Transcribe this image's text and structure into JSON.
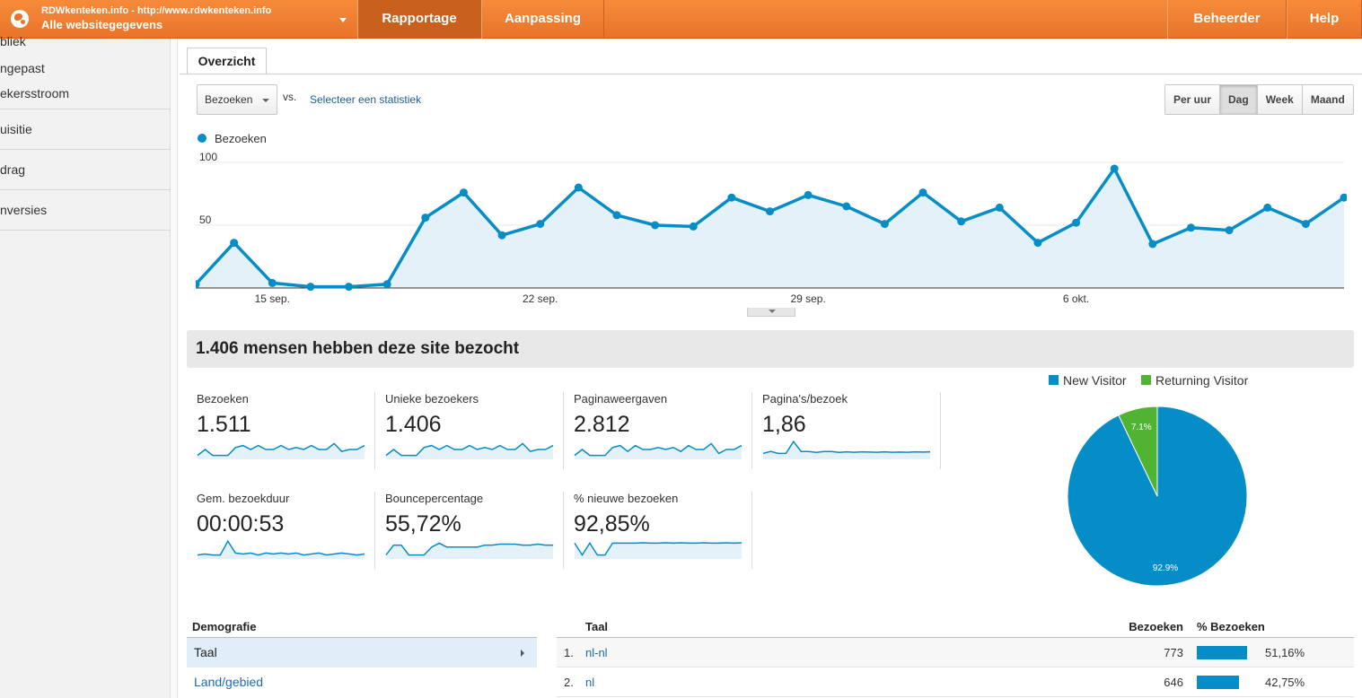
{
  "header": {
    "site_url": "RDWkenteken.info - http://www.rdwkenteken.info",
    "site_name": "Alle websitegegevens",
    "tabs": [
      "Rapportage",
      "Aanpassing"
    ],
    "right_tabs": [
      "Beheerder",
      "Help"
    ]
  },
  "sidebar": {
    "items": [
      "bliek",
      "ngepast",
      "ekersstroom",
      "uisitie",
      "drag",
      "nversies"
    ]
  },
  "main": {
    "tab": "Overzicht",
    "metric_select": "Bezoeken",
    "vs": "vs.",
    "select_stat": "Selecteer een statistiek",
    "periods": [
      "Per uur",
      "Dag",
      "Week",
      "Maand"
    ],
    "active_period": "Dag",
    "summary": "1.406 mensen hebben deze site bezocht"
  },
  "chart_data": [
    {
      "type": "area",
      "series": [
        {
          "name": "Bezoeken",
          "values": [
            3,
            36,
            4,
            1,
            1,
            3,
            56,
            76,
            42,
            51,
            80,
            58,
            50,
            49,
            72,
            61,
            74,
            65,
            51,
            76,
            53,
            64,
            36,
            52,
            95,
            35,
            48,
            46,
            64,
            51,
            72
          ]
        }
      ],
      "x_tick_labels": [
        "15 sep.",
        "22 sep.",
        "29 sep.",
        "6 okt."
      ],
      "y_tick_labels": [
        "100",
        "50"
      ],
      "ylim": [
        0,
        100
      ],
      "color": "#058dc7"
    },
    {
      "type": "pie",
      "categories": [
        "New Visitor",
        "Returning Visitor"
      ],
      "values": [
        92.9,
        7.1
      ],
      "labels": [
        "92.9%",
        "7.1%"
      ],
      "colors": [
        "#058dc7",
        "#50b432"
      ],
      "legend": "top"
    }
  ],
  "kpis": [
    {
      "label": "Bezoeken",
      "value": "1.511",
      "spark": [
        0.2,
        0.5,
        0.2,
        0.2,
        0.2,
        0.6,
        0.7,
        0.5,
        0.7,
        0.5,
        0.5,
        0.7,
        0.5,
        0.6,
        0.5,
        0.7,
        0.5,
        0.5,
        0.8,
        0.4,
        0.5,
        0.5,
        0.7
      ]
    },
    {
      "label": "Unieke bezoekers",
      "value": "1.406",
      "spark": [
        0.2,
        0.5,
        0.2,
        0.2,
        0.2,
        0.6,
        0.7,
        0.5,
        0.7,
        0.5,
        0.5,
        0.7,
        0.5,
        0.6,
        0.5,
        0.7,
        0.5,
        0.5,
        0.8,
        0.4,
        0.5,
        0.5,
        0.7
      ]
    },
    {
      "label": "Paginaweergaven",
      "value": "2.812",
      "spark": [
        0.2,
        0.5,
        0.2,
        0.2,
        0.2,
        0.6,
        0.7,
        0.4,
        0.7,
        0.5,
        0.5,
        0.6,
        0.5,
        0.6,
        0.4,
        0.7,
        0.5,
        0.5,
        0.8,
        0.3,
        0.5,
        0.5,
        0.7
      ]
    },
    {
      "label": "Pagina's/bezoek",
      "value": "1,86",
      "spark": [
        0.3,
        0.4,
        0.3,
        0.3,
        0.9,
        0.4,
        0.4,
        0.35,
        0.4,
        0.4,
        0.35,
        0.38,
        0.36,
        0.38,
        0.37,
        0.36,
        0.38,
        0.36,
        0.37,
        0.36,
        0.38,
        0.37,
        0.38
      ]
    },
    {
      "label": "Gem. bezoekduur",
      "value": "00:00:53",
      "spark": [
        0.2,
        0.25,
        0.2,
        0.2,
        0.9,
        0.3,
        0.25,
        0.3,
        0.2,
        0.3,
        0.25,
        0.3,
        0.25,
        0.3,
        0.2,
        0.25,
        0.3,
        0.2,
        0.25,
        0.3,
        0.25,
        0.2,
        0.25
      ]
    },
    {
      "label": "Bouncepercentage",
      "value": "55,72%",
      "spark": [
        0.2,
        0.7,
        0.7,
        0.2,
        0.2,
        0.2,
        0.6,
        0.8,
        0.6,
        0.6,
        0.6,
        0.6,
        0.6,
        0.7,
        0.7,
        0.75,
        0.75,
        0.75,
        0.7,
        0.7,
        0.75,
        0.7,
        0.7
      ]
    },
    {
      "label": "% nieuwe bezoeken",
      "value": "92,85%",
      "spark": [
        0.8,
        0.2,
        0.8,
        0.2,
        0.2,
        0.8,
        0.8,
        0.8,
        0.8,
        0.82,
        0.8,
        0.8,
        0.82,
        0.8,
        0.82,
        0.8,
        0.8,
        0.82,
        0.8,
        0.8,
        0.82,
        0.8,
        0.82
      ]
    }
  ],
  "demographics": {
    "title": "Demografie",
    "items": [
      "Taal",
      "Land/gebied"
    ]
  },
  "table": {
    "headers": [
      "Taal",
      "Bezoeken",
      "% Bezoeken"
    ],
    "rows": [
      {
        "num": "1.",
        "lang": "nl-nl",
        "visits": "773",
        "pct": "51,16%",
        "share": 51.16
      },
      {
        "num": "2.",
        "lang": "nl",
        "visits": "646",
        "pct": "42,75%",
        "share": 42.75
      }
    ]
  }
}
